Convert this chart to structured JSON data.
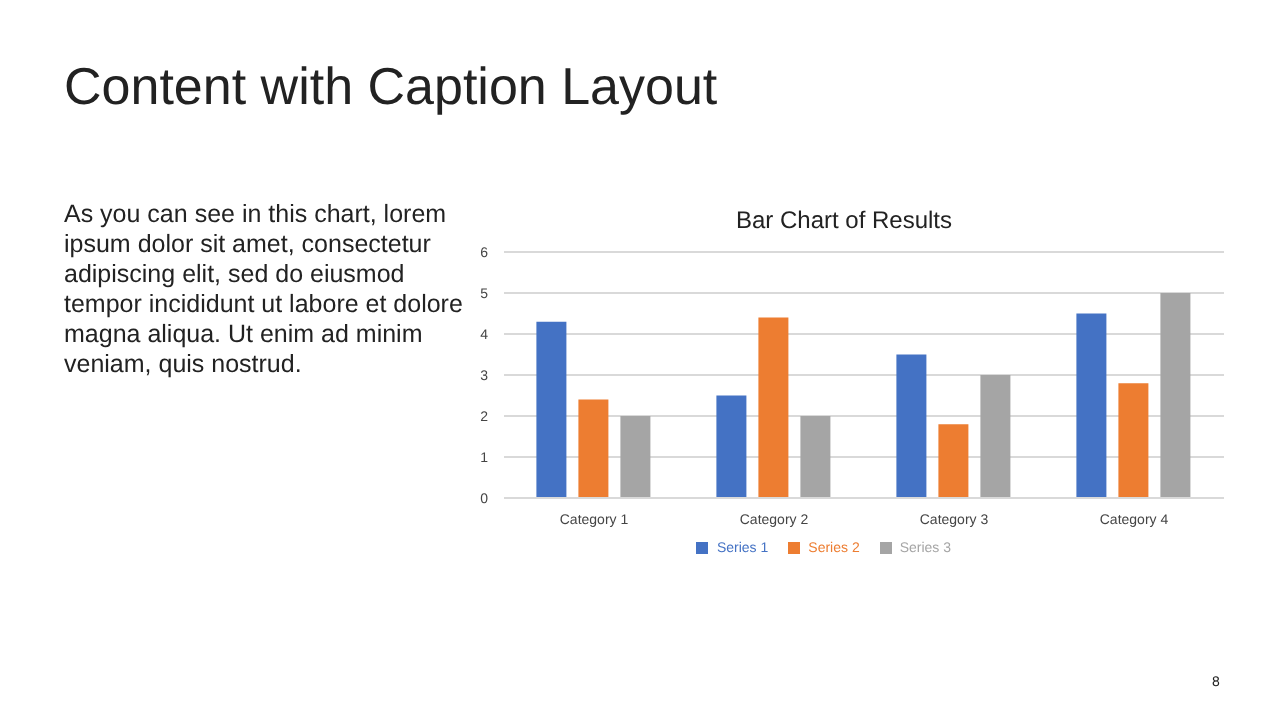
{
  "chart_data": {
    "type": "bar",
    "title": "Content with Caption Layout",
    "subtitle": "Bar Chart of Results",
    "annotations": [
      "As you can see in this chart, lorem ipsum dolor sit amet, consectetur adipiscing elit, sed do eiusmod tempor incididunt ut labore et dolore magna aliqua. Ut enim ad minim veniam, quis nostrud.",
      "8"
    ],
    "categories": [
      "Category 1",
      "Category 2",
      "Category 3",
      "Category 4"
    ],
    "series": [
      {
        "name": "Series 1",
        "color": "#4472c4",
        "values": [
          4.3,
          2.5,
          3.5,
          4.5
        ]
      },
      {
        "name": "Series 2",
        "color": "#ed7d31",
        "values": [
          2.4,
          4.4,
          1.8,
          2.8
        ]
      },
      {
        "name": "Series 3",
        "color": "#a5a5a5",
        "values": [
          2,
          2,
          3,
          5
        ]
      }
    ],
    "ylim": [
      0,
      6
    ],
    "yticks": [
      0,
      1,
      2,
      3,
      4,
      5,
      6
    ],
    "grid": "y",
    "legend": "bottom"
  }
}
